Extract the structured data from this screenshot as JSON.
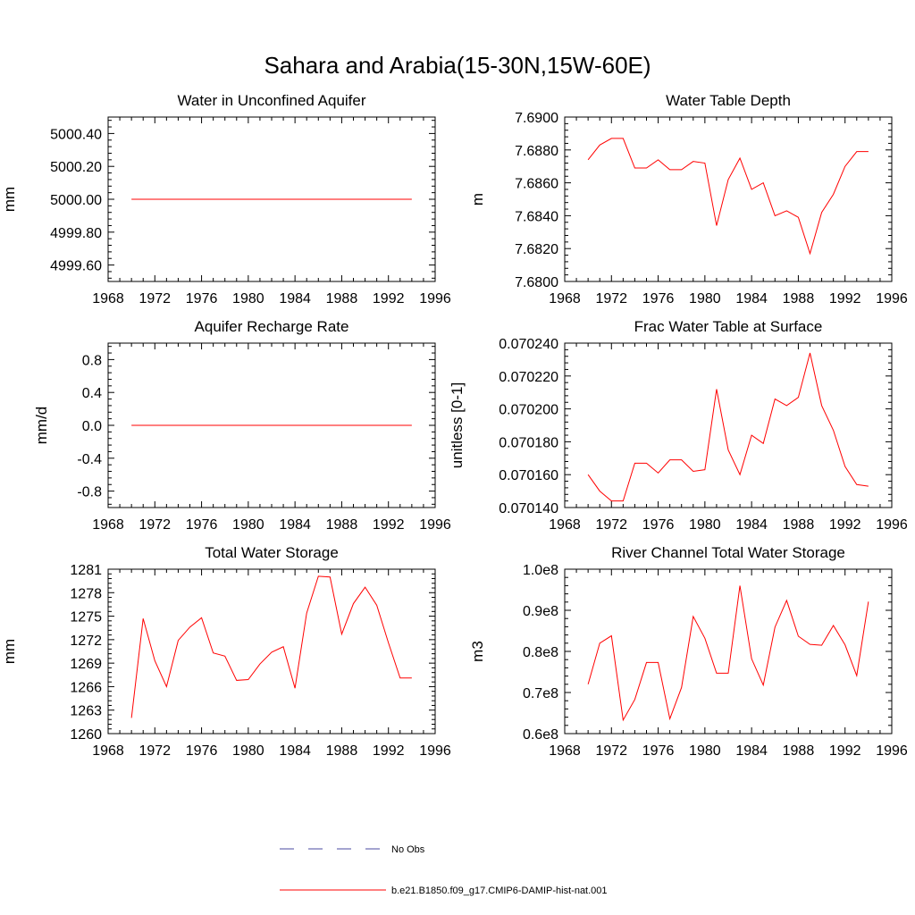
{
  "figure": {
    "title": "Sahara and Arabia(15-30N,15W-60E)"
  },
  "colors": {
    "model": "#ff0000",
    "obs": "#4a4aa0",
    "axis": "#000000"
  },
  "legend": {
    "entries": [
      {
        "label": "No Obs",
        "style": "dashed",
        "color": "#4a4aa0"
      },
      {
        "label": "b.e21.B1850.f09_g17.CMIP6-DAMIP-hist-nat.001",
        "style": "solid",
        "color": "#ff0000"
      }
    ]
  },
  "chart_data": [
    {
      "type": "line",
      "title": "Water in Unconfined Aquifer",
      "ylabel": "mm",
      "xlim": [
        1968,
        1996
      ],
      "ylim": [
        4999.5,
        5000.5
      ],
      "xticks": [
        1968,
        1972,
        1976,
        1980,
        1984,
        1988,
        1992,
        1996
      ],
      "yticks": [
        4999.6,
        4999.8,
        5000.0,
        5000.2,
        5000.4
      ],
      "ytick_labels": [
        "4999.60",
        "4999.80",
        "5000.00",
        "5000.20",
        "5000.40"
      ],
      "x": [
        1970,
        1971,
        1972,
        1973,
        1974,
        1975,
        1976,
        1977,
        1978,
        1979,
        1980,
        1981,
        1982,
        1983,
        1984,
        1985,
        1986,
        1987,
        1988,
        1989,
        1990,
        1991,
        1992,
        1993,
        1994
      ],
      "series": [
        {
          "values": [
            5000,
            5000,
            5000,
            5000,
            5000,
            5000,
            5000,
            5000,
            5000,
            5000,
            5000,
            5000,
            5000,
            5000,
            5000,
            5000,
            5000,
            5000,
            5000,
            5000,
            5000,
            5000,
            5000,
            5000,
            5000
          ]
        }
      ]
    },
    {
      "type": "line",
      "title": "Water Table Depth",
      "ylabel": "m",
      "xlim": [
        1968,
        1996
      ],
      "ylim": [
        7.68,
        7.69
      ],
      "xticks": [
        1968,
        1972,
        1976,
        1980,
        1984,
        1988,
        1992,
        1996
      ],
      "yticks": [
        7.68,
        7.682,
        7.684,
        7.686,
        7.688,
        7.69
      ],
      "ytick_labels": [
        "7.6800",
        "7.6820",
        "7.6840",
        "7.6860",
        "7.6880",
        "7.6900"
      ],
      "x": [
        1970,
        1971,
        1972,
        1973,
        1974,
        1975,
        1976,
        1977,
        1978,
        1979,
        1980,
        1981,
        1982,
        1983,
        1984,
        1985,
        1986,
        1987,
        1988,
        1989,
        1990,
        1991,
        1992,
        1993,
        1994
      ],
      "series": [
        {
          "values": [
            7.6874,
            7.6883,
            7.6887,
            7.6887,
            7.6869,
            7.6869,
            7.6874,
            7.6868,
            7.6868,
            7.6873,
            7.6872,
            7.6834,
            7.6862,
            7.6875,
            7.6856,
            7.686,
            7.684,
            7.6843,
            7.6839,
            7.6817,
            7.6842,
            7.6853,
            7.687,
            7.6879,
            7.6879
          ]
        }
      ]
    },
    {
      "type": "line",
      "title": "Aquifer Recharge Rate",
      "ylabel": "mm/d",
      "xlim": [
        1968,
        1996
      ],
      "ylim": [
        -1.0,
        1.0
      ],
      "xticks": [
        1968,
        1972,
        1976,
        1980,
        1984,
        1988,
        1992,
        1996
      ],
      "yticks": [
        -0.8,
        -0.4,
        0.0,
        0.4,
        0.8
      ],
      "ytick_labels": [
        "-0.8",
        "-0.4",
        "0.0",
        "0.4",
        "0.8"
      ],
      "x": [
        1970,
        1971,
        1972,
        1973,
        1974,
        1975,
        1976,
        1977,
        1978,
        1979,
        1980,
        1981,
        1982,
        1983,
        1984,
        1985,
        1986,
        1987,
        1988,
        1989,
        1990,
        1991,
        1992,
        1993,
        1994
      ],
      "series": [
        {
          "values": [
            0,
            0,
            0,
            0,
            0,
            0,
            0,
            0,
            0,
            0,
            0,
            0,
            0,
            0,
            0,
            0,
            0,
            0,
            0,
            0,
            0,
            0,
            0,
            0,
            0
          ]
        }
      ]
    },
    {
      "type": "line",
      "title": "Frac Water Table at Surface",
      "ylabel": "unitless [0-1]",
      "xlim": [
        1968,
        1996
      ],
      "ylim": [
        0.07014,
        0.07024
      ],
      "xticks": [
        1968,
        1972,
        1976,
        1980,
        1984,
        1988,
        1992,
        1996
      ],
      "yticks": [
        0.07014,
        0.07016,
        0.07018,
        0.0702,
        0.07022,
        0.07024
      ],
      "ytick_labels": [
        "0.070140",
        "0.070160",
        "0.070180",
        "0.070200",
        "0.070220",
        "0.070240"
      ],
      "x": [
        1970,
        1971,
        1972,
        1973,
        1974,
        1975,
        1976,
        1977,
        1978,
        1979,
        1980,
        1981,
        1982,
        1983,
        1984,
        1985,
        1986,
        1987,
        1988,
        1989,
        1990,
        1991,
        1992,
        1993,
        1994
      ],
      "series": [
        {
          "values": [
            0.07016,
            0.07015,
            0.070144,
            0.070144,
            0.070167,
            0.070167,
            0.070161,
            0.070169,
            0.070169,
            0.070162,
            0.070163,
            0.070212,
            0.070175,
            0.07016,
            0.070184,
            0.070179,
            0.070206,
            0.070202,
            0.070207,
            0.070234,
            0.070202,
            0.070187,
            0.070165,
            0.070154,
            0.070153
          ]
        }
      ]
    },
    {
      "type": "line",
      "title": "Total Water Storage",
      "ylabel": "mm",
      "xlim": [
        1968,
        1996
      ],
      "ylim": [
        1260,
        1281
      ],
      "xticks": [
        1968,
        1972,
        1976,
        1980,
        1984,
        1988,
        1992,
        1996
      ],
      "yticks": [
        1260,
        1263,
        1266,
        1269,
        1272,
        1275,
        1278,
        1281
      ],
      "ytick_labels": [
        "1260",
        "1263",
        "1266",
        "1269",
        "1272",
        "1275",
        "1278",
        "1281"
      ],
      "x": [
        1970,
        1971,
        1972,
        1973,
        1974,
        1975,
        1976,
        1977,
        1978,
        1979,
        1980,
        1981,
        1982,
        1983,
        1984,
        1985,
        1986,
        1987,
        1988,
        1989,
        1990,
        1991,
        1992,
        1993,
        1994
      ],
      "series": [
        {
          "values": [
            1262,
            1274.7,
            1269.3,
            1266,
            1271.9,
            1273.6,
            1274.8,
            1270.3,
            1269.9,
            1266.8,
            1266.9,
            1268.9,
            1270.4,
            1271.1,
            1265.8,
            1275.4,
            1280.1,
            1280,
            1272.7,
            1276.6,
            1278.7,
            1276.4,
            1271.6,
            1267.1,
            1267.1
          ]
        }
      ]
    },
    {
      "type": "line",
      "title": "River Channel Total Water Storage",
      "ylabel": "m3",
      "xlim": [
        1968,
        1996
      ],
      "ylim": [
        60000000,
        100000000
      ],
      "xticks": [
        1968,
        1972,
        1976,
        1980,
        1984,
        1988,
        1992,
        1996
      ],
      "yticks": [
        60000000,
        70000000,
        80000000,
        90000000,
        100000000
      ],
      "ytick_labels": [
        "0.6e8",
        "0.7e8",
        "0.8e8",
        "0.9e8",
        "1.0e8"
      ],
      "x": [
        1970,
        1971,
        1972,
        1973,
        1974,
        1975,
        1976,
        1977,
        1978,
        1979,
        1980,
        1981,
        1982,
        1983,
        1984,
        1985,
        1986,
        1987,
        1988,
        1989,
        1990,
        1991,
        1992,
        1993,
        1994
      ],
      "series": [
        {
          "values": [
            72000000,
            82000000,
            83800000,
            63300000,
            68300000,
            77300000,
            77300000,
            63600000,
            71200000,
            88500000,
            83200000,
            74700000,
            74700000,
            96000000,
            78200000,
            71800000,
            85900000,
            92400000,
            83700000,
            81700000,
            81500000,
            86300000,
            81600000,
            74100000,
            92100000
          ]
        }
      ]
    }
  ]
}
